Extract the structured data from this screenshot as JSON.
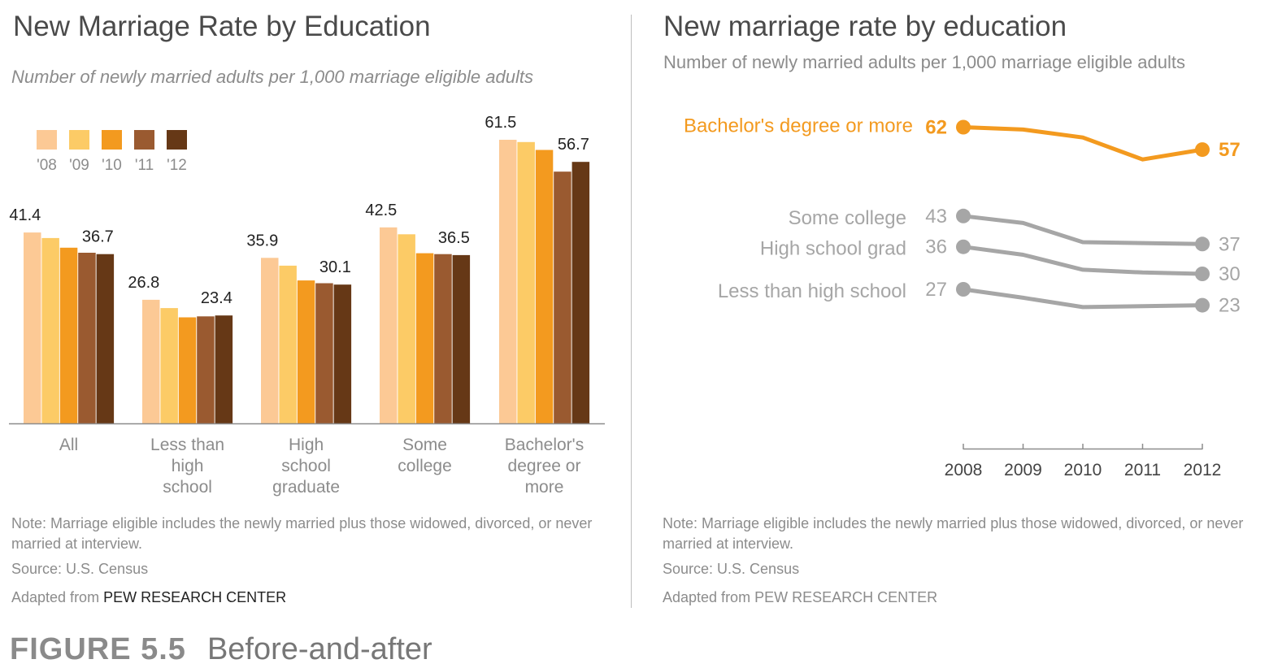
{
  "left": {
    "title": "New Marriage Rate by Education",
    "subtitle": "Number of newly married adults per 1,000 marriage eligible adults",
    "note": "Note: Marriage eligible includes the newly married plus those widowed, divorced, or never married at interview.",
    "source": "Source: U.S. Census",
    "adapted_prefix": "Adapted from ",
    "adapted_org": "PEW RESEARCH CENTER"
  },
  "right": {
    "title": "New marriage rate by education",
    "subtitle": "Number of newly married adults per 1,000 marriage eligible adults",
    "note": "Note: Marriage eligible includes the newly married plus those widowed, divorced, or never married at interview.",
    "source": "Source: U.S. Census",
    "adapted_prefix": "Adapted from ",
    "adapted_org": "PEW RESEARCH CENTER"
  },
  "figure": {
    "number": "FIGURE 5.5",
    "caption": "Before-and-after"
  },
  "colors": {
    "y08": "#fcc995",
    "y09": "#fccb66",
    "y10": "#f39a1f",
    "y11": "#9a5a30",
    "y12": "#663816",
    "highlight": "#f39a1f",
    "muted": "#a6a6a6"
  },
  "chart_data": [
    {
      "type": "bar",
      "title": "New Marriage Rate by Education",
      "subtitle": "Number of newly married adults per 1,000 marriage eligible adults",
      "categories": [
        [
          "All"
        ],
        [
          "Less than",
          "high",
          "school"
        ],
        [
          "High",
          "school",
          "graduate"
        ],
        [
          "Some",
          "college"
        ],
        [
          "Bachelor's",
          "degree or",
          "more"
        ]
      ],
      "legend": [
        "'08",
        "'09",
        "'10",
        "'11",
        "'12"
      ],
      "legend_position": "top-left",
      "series": [
        {
          "name": "'08",
          "values": [
            41.4,
            26.8,
            35.9,
            42.5,
            61.5
          ]
        },
        {
          "name": "'09",
          "values": [
            40.2,
            25.0,
            34.2,
            41.0,
            61.0
          ]
        },
        {
          "name": "'10",
          "values": [
            38.1,
            23.0,
            31.0,
            36.9,
            59.3
          ]
        },
        {
          "name": "'11",
          "values": [
            37.0,
            23.2,
            30.4,
            36.7,
            54.6
          ]
        },
        {
          "name": "'12",
          "values": [
            36.7,
            23.4,
            30.1,
            36.5,
            56.7
          ]
        }
      ],
      "value_labels": [
        {
          "category": 0,
          "series": 0,
          "text": "41.4"
        },
        {
          "category": 0,
          "series": 4,
          "text": "36.7"
        },
        {
          "category": 1,
          "series": 0,
          "text": "26.8"
        },
        {
          "category": 1,
          "series": 4,
          "text": "23.4"
        },
        {
          "category": 2,
          "series": 0,
          "text": "35.9"
        },
        {
          "category": 2,
          "series": 4,
          "text": "30.1"
        },
        {
          "category": 3,
          "series": 0,
          "text": "42.5"
        },
        {
          "category": 3,
          "series": 4,
          "text": "36.5"
        },
        {
          "category": 4,
          "series": 0,
          "text": "61.5"
        },
        {
          "category": 4,
          "series": 4,
          "text": "56.7"
        }
      ],
      "ylim": [
        0,
        62
      ],
      "grid": false
    },
    {
      "type": "line",
      "title": "New marriage rate by education",
      "subtitle": "Number of newly married adults per 1,000 marriage eligible adults",
      "x": [
        "2008",
        "2009",
        "2010",
        "2011",
        "2012"
      ],
      "series": [
        {
          "name": "Bachelor's degree or more",
          "values": [
            61.5,
            61.0,
            59.3,
            54.6,
            56.7
          ],
          "start_label": "62",
          "end_label": "57",
          "highlight": true
        },
        {
          "name": "Some college",
          "values": [
            42.5,
            41.0,
            36.9,
            36.7,
            36.5
          ],
          "start_label": "43",
          "end_label": "37",
          "highlight": false
        },
        {
          "name": "High school grad",
          "values": [
            35.9,
            34.2,
            31.0,
            30.4,
            30.1
          ],
          "start_label": "36",
          "end_label": "30",
          "highlight": false
        },
        {
          "name": "Less than high school",
          "values": [
            26.8,
            25.0,
            23.0,
            23.2,
            23.4
          ],
          "start_label": "27",
          "end_label": "23",
          "highlight": false
        }
      ],
      "ylim": [
        0,
        62
      ],
      "grid": false
    }
  ]
}
